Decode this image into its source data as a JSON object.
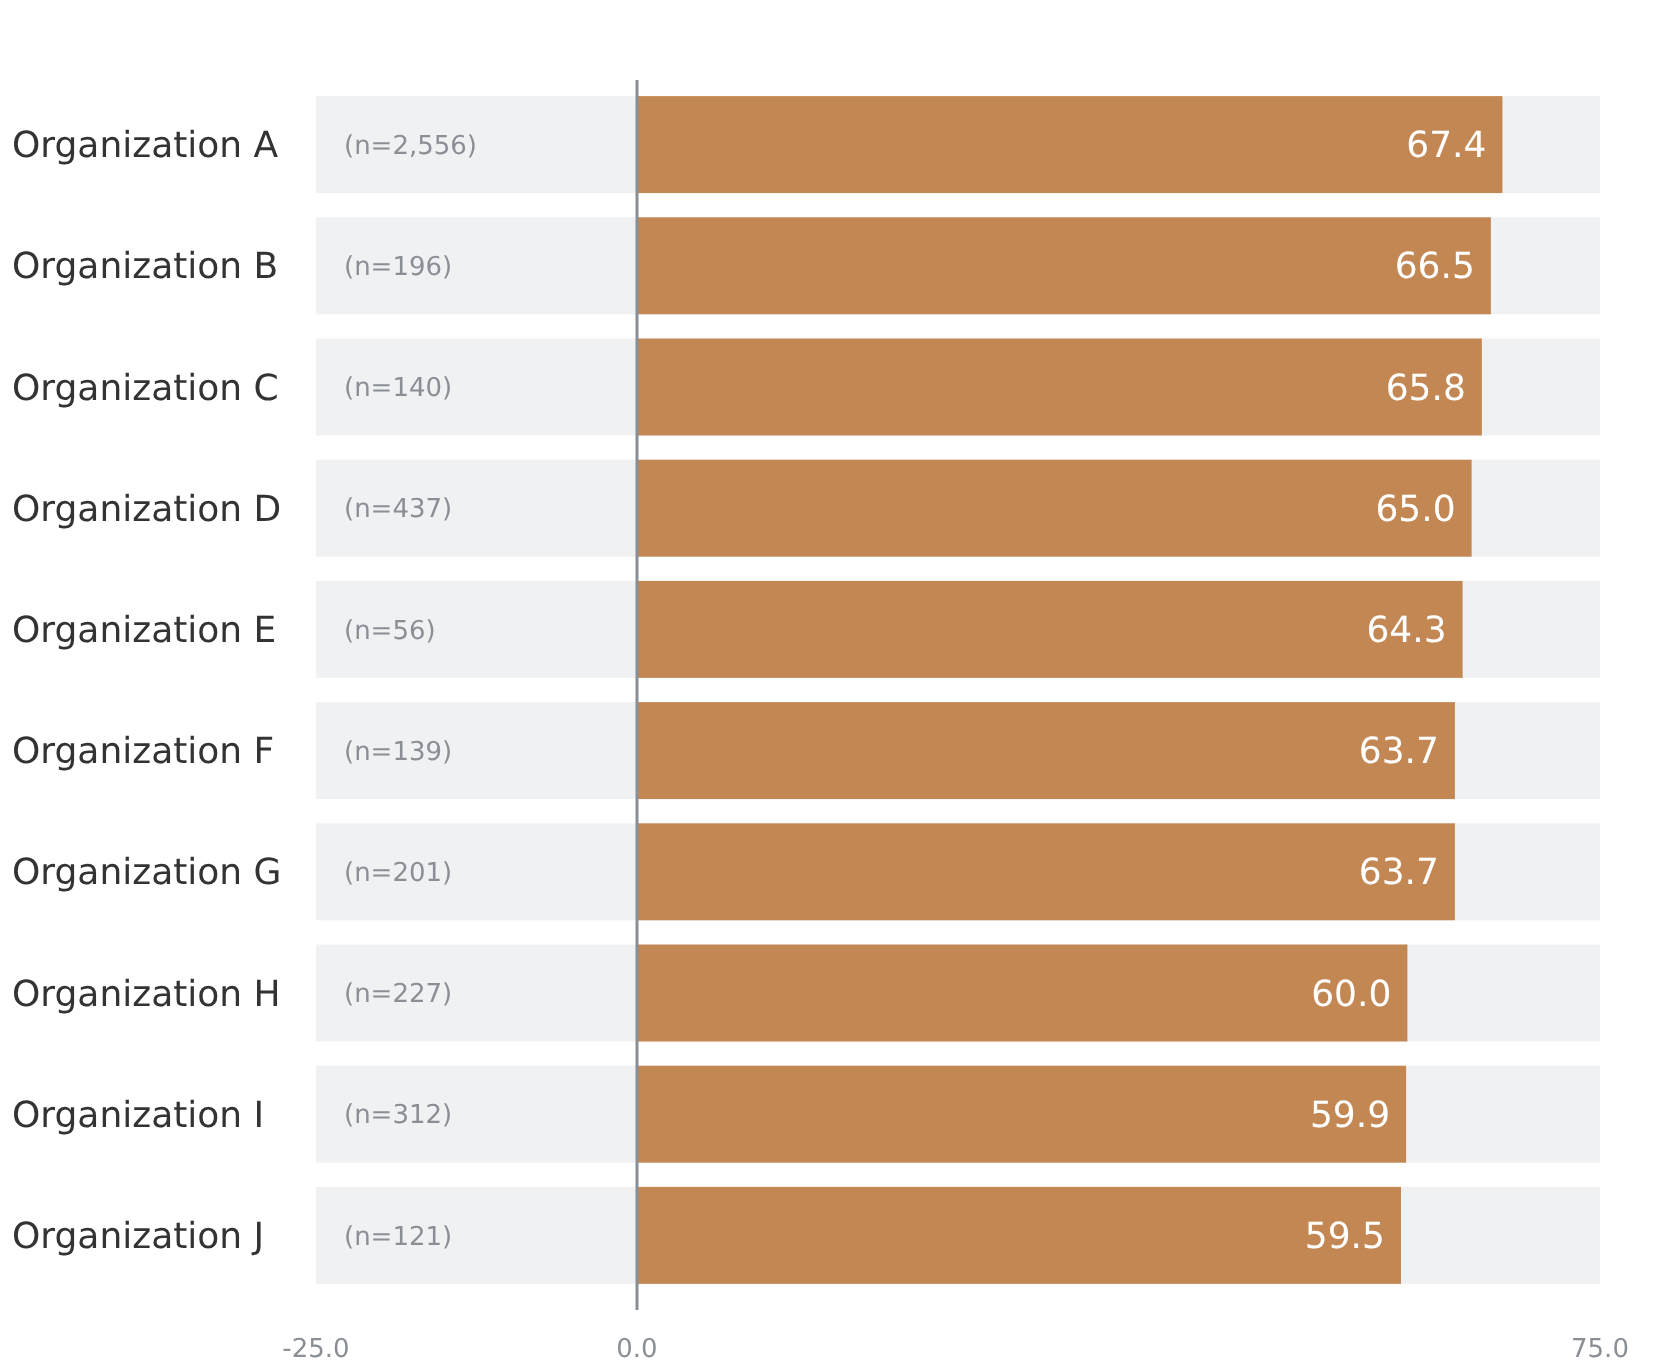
{
  "chart_data": {
    "type": "bar",
    "orientation": "horizontal",
    "categories": [
      "Organization A",
      "Organization B",
      "Organization C",
      "Organization D",
      "Organization E",
      "Organization F",
      "Organization G",
      "Organization H",
      "Organization I",
      "Organization J"
    ],
    "values": [
      67.4,
      66.5,
      65.8,
      65.0,
      64.3,
      63.7,
      63.7,
      60.0,
      59.9,
      59.5
    ],
    "value_labels": [
      "67.4",
      "66.5",
      "65.8",
      "65.0",
      "64.3",
      "63.7",
      "63.7",
      "60.0",
      "59.9",
      "59.5"
    ],
    "color": "#c28753",
    "xlim": [
      -25,
      75
    ],
    "xticks": [
      {
        "value": -25,
        "label": "-25.0"
      },
      {
        "value": 0,
        "label": "0.0"
      },
      {
        "value": 75,
        "label": "75.0"
      }
    ],
    "ref_lines": [
      {
        "axis": "x",
        "value": 0,
        "color": "#8a8f96"
      }
    ],
    "annotations": [
      "(n=2,556)",
      "(n=196)",
      "(n=140)",
      "(n=437)",
      "(n=56)",
      "(n=139)",
      "(n=201)",
      "(n=227)",
      "(n=312)",
      "(n=121)"
    ]
  }
}
